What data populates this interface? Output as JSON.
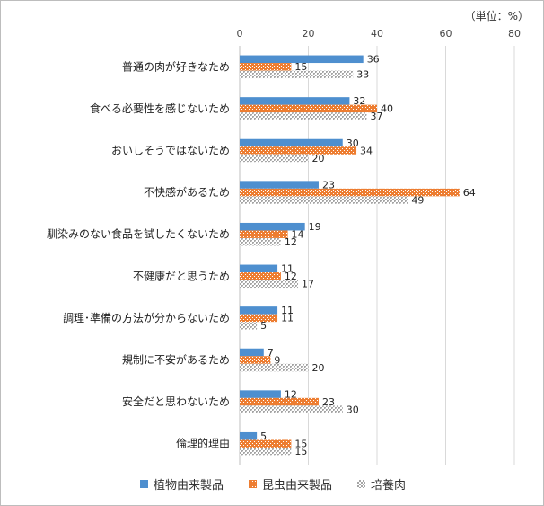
{
  "unit_label": "（単位：%）",
  "chart_data": {
    "type": "bar",
    "orientation": "horizontal",
    "categories": [
      "普通の肉が好きなため",
      "食べる必要性を感じないため",
      "おいしそうではないため",
      "不快感があるため",
      "馴染みのない食品を試したくないため",
      "不健康だと思うため",
      "調理･準備の方法が分からないため",
      "規制に不安があるため",
      "安全だと思わないため",
      "倫理的理由"
    ],
    "series": [
      {
        "name": "植物由来製品",
        "color": "#4e8fcf",
        "pattern": "solid",
        "values": [
          36,
          32,
          30,
          23,
          19,
          11,
          11,
          7,
          12,
          5
        ]
      },
      {
        "name": "昆虫由来製品",
        "color": "#ed7d31",
        "pattern": "dots",
        "values": [
          15,
          40,
          34,
          64,
          14,
          12,
          11,
          9,
          23,
          15
        ]
      },
      {
        "name": "培養肉",
        "color": "#a6a6a6",
        "pattern": "checker",
        "values": [
          33,
          37,
          20,
          49,
          12,
          17,
          5,
          20,
          30,
          15
        ]
      }
    ],
    "x_ticks": [
      0,
      20,
      40,
      60,
      80
    ],
    "xlim": [
      0,
      80
    ],
    "grid": true,
    "legend_position": "bottom"
  }
}
